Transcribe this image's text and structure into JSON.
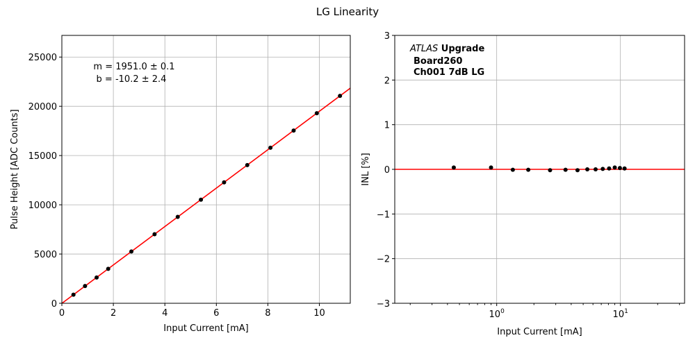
{
  "figure": {
    "title": "LG Linearity"
  },
  "chart_data": [
    {
      "type": "scatter",
      "title": "",
      "xlabel": "Input Current [mA]",
      "ylabel": "Pulse Height [ADC Counts]",
      "xlim": [
        0,
        11.2
      ],
      "ylim": [
        0,
        27200
      ],
      "x_ticks": [
        0,
        2,
        4,
        6,
        8,
        10
      ],
      "x_tick_labels": [
        "0",
        "2",
        "4",
        "6",
        "8",
        "10"
      ],
      "y_ticks": [
        0,
        5000,
        10000,
        15000,
        20000,
        25000
      ],
      "y_tick_labels": [
        "0",
        "5000",
        "10000",
        "15000",
        "20000",
        "25000"
      ],
      "grid": true,
      "points": {
        "x": [
          0.45,
          0.9,
          1.35,
          1.8,
          2.7,
          3.6,
          4.5,
          5.4,
          6.3,
          7.2,
          8.1,
          9.0,
          9.9,
          10.8
        ],
        "y": [
          870,
          1750,
          2620,
          3500,
          5260,
          7010,
          8770,
          10520,
          12280,
          14030,
          15790,
          17540,
          19300,
          21060
        ],
        "color": "#000000"
      },
      "fit": {
        "slope": 1951.0,
        "intercept": -10.2,
        "color": "#ff0000"
      },
      "annotations": [
        "m = 1951.0 ± 0.1",
        "b = -10.2 ± 2.4"
      ]
    },
    {
      "type": "scatter",
      "title": "",
      "xlabel": "Input Current [mA]",
      "ylabel": "INL [%]",
      "xscale": "log",
      "xlim": [
        0.15,
        33
      ],
      "ylim": [
        -3,
        3
      ],
      "x_ticks_major": [
        1,
        10
      ],
      "x_tick_labels": [
        {
          "base": "10",
          "exp": "0"
        },
        {
          "base": "10",
          "exp": "1"
        }
      ],
      "y_ticks": [
        -3,
        -2,
        -1,
        0,
        1,
        2,
        3
      ],
      "y_tick_labels": [
        "−3",
        "−2",
        "−1",
        "0",
        "1",
        "2",
        "3"
      ],
      "grid": true,
      "points": {
        "x": [
          0.45,
          0.9,
          1.35,
          1.8,
          2.7,
          3.6,
          4.5,
          5.4,
          6.3,
          7.2,
          8.1,
          9.0,
          9.9,
          10.8
        ],
        "y": [
          0.04,
          0.04,
          -0.01,
          -0.01,
          -0.02,
          -0.01,
          -0.02,
          0.0,
          0.0,
          0.01,
          0.02,
          0.04,
          0.03,
          0.02
        ],
        "color": "#000000"
      },
      "reference_line": {
        "y": 0,
        "color": "#ff0000"
      },
      "annotations": {
        "line1_italic": "ATLAS",
        "line1_bold": " Upgrade",
        "line2": "Board260",
        "line3": "Ch001 7dB LG"
      }
    }
  ]
}
